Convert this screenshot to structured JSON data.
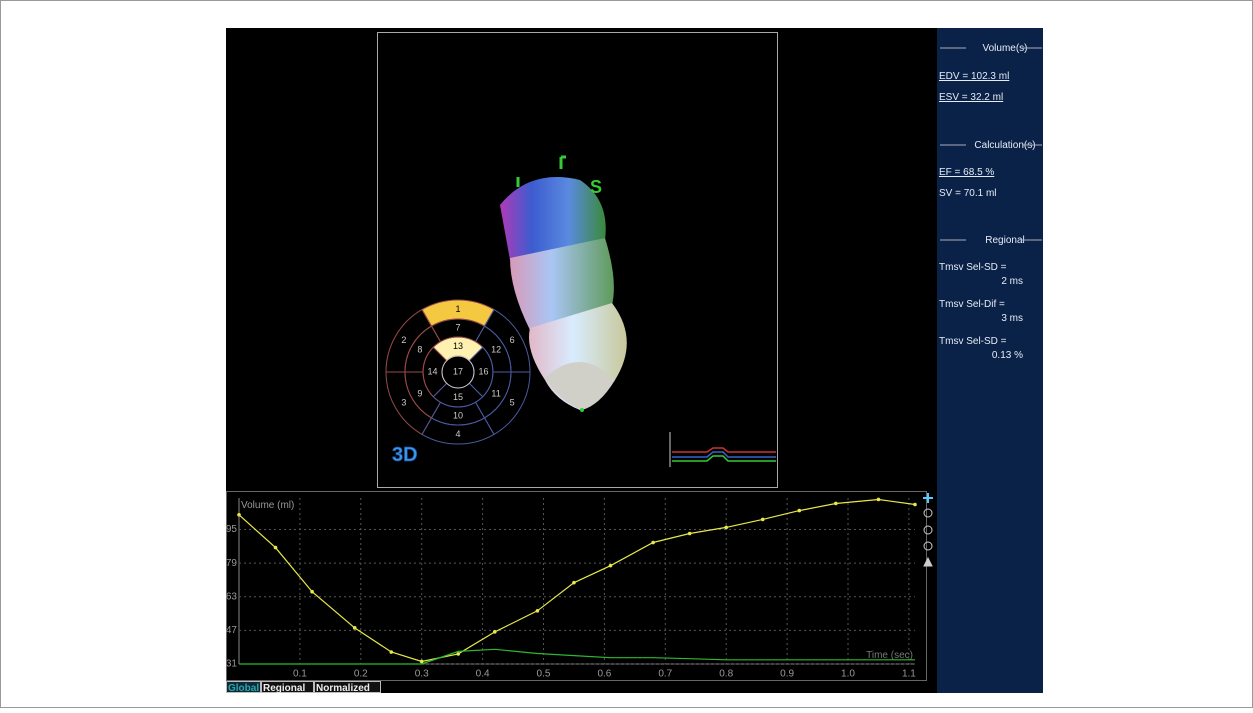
{
  "header": {
    "orientation": "S",
    "logo": "3D"
  },
  "bullseye": {
    "segments": [
      "1",
      "2",
      "3",
      "4",
      "5",
      "6",
      "7",
      "8",
      "9",
      "10",
      "11",
      "12",
      "13",
      "14",
      "15",
      "16",
      "17"
    ]
  },
  "panel": {
    "volumes": {
      "title": "Volume(s)",
      "edv": "EDV = 102.3 ml",
      "esv": "ESV = 32.2 ml"
    },
    "calculations": {
      "title": "Calculation(s)",
      "ef": "EF = 68.5 %",
      "sv": "SV = 70.1 ml"
    },
    "regional": {
      "title": "Regional",
      "items": [
        [
          "Tmsv Sel-SD =",
          "2 ms"
        ],
        [
          "Tmsv Sel-Dif =",
          "3 ms"
        ],
        [
          "Tmsv Sel-SD =",
          "0.13 %"
        ]
      ]
    }
  },
  "tabs": [
    "Global",
    "Regional",
    "Normalized"
  ],
  "chart_data": {
    "type": "line",
    "y_label": "Volume (ml)",
    "x_label": "Time (sec)",
    "x": [
      0,
      0.06,
      0.12,
      0.19,
      0.25,
      0.3,
      0.36,
      0.42,
      0.49,
      0.55,
      0.61,
      0.68,
      0.74,
      0.8,
      0.86,
      0.92,
      0.98,
      1.05,
      1.11
    ],
    "series": [
      {
        "color": "#e8e84a",
        "values": [
          102,
          86.4,
          65.4,
          48.2,
          36.7,
          32.2,
          35.8,
          46.3,
          56.3,
          69.7,
          77.8,
          88.8,
          93.1,
          96,
          99.8,
          104,
          107.4,
          109.3,
          106.9
        ]
      },
      {
        "color": "#2fb82f",
        "values": [
          31,
          31,
          31,
          31,
          31,
          31,
          37,
          38,
          36,
          35,
          34,
          34,
          33.5,
          33,
          33,
          33,
          33,
          33,
          33
        ]
      }
    ],
    "xlim": [
      0,
      1.11
    ],
    "ylim": [
      31,
      110
    ],
    "xticks": [
      0.1,
      0.2,
      0.3,
      0.4,
      0.5,
      0.6,
      0.7,
      0.8,
      0.9,
      {
        "value": 1,
        "label": "1.0"
      },
      1.1
    ],
    "yticks": [
      31,
      47,
      63,
      79,
      95
    ],
    "grid": true
  }
}
